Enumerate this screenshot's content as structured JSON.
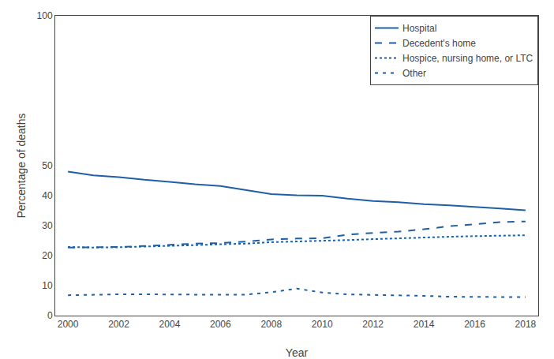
{
  "chart_data": {
    "type": "line",
    "x": [
      2000,
      2001,
      2002,
      2003,
      2004,
      2005,
      2006,
      2007,
      2008,
      2009,
      2010,
      2011,
      2012,
      2013,
      2014,
      2015,
      2016,
      2017,
      2018
    ],
    "series": [
      {
        "name": "Hospital",
        "color": "#1f5fa6",
        "line_style": "solid",
        "values": [
          48.0,
          46.8,
          46.2,
          45.3,
          44.6,
          43.8,
          43.2,
          41.8,
          40.5,
          40.1,
          40.0,
          39.0,
          38.2,
          37.8,
          37.2,
          36.8,
          36.3,
          35.7,
          35.1
        ]
      },
      {
        "name": "Decedent's home",
        "color": "#1f5fa6",
        "line_style": "dashed",
        "values": [
          22.7,
          22.8,
          22.9,
          23.2,
          23.6,
          24.0,
          24.2,
          24.7,
          25.4,
          25.7,
          25.8,
          27.0,
          27.6,
          28.0,
          28.8,
          29.8,
          30.5,
          31.2,
          31.4
        ]
      },
      {
        "name": "Hospice, nursing home, or LTC",
        "color": "#1f5fa6",
        "line_style": "dotted",
        "values": [
          22.9,
          22.7,
          22.8,
          23.0,
          23.2,
          23.5,
          23.8,
          24.0,
          24.5,
          24.7,
          25.0,
          25.2,
          25.5,
          25.8,
          26.0,
          26.3,
          26.5,
          26.7,
          26.8
        ]
      },
      {
        "name": "Other",
        "color": "#1f5fa6",
        "line_style": "shortdash",
        "values": [
          6.8,
          7.0,
          7.1,
          7.1,
          7.0,
          7.0,
          7.0,
          7.0,
          7.8,
          9.0,
          7.7,
          7.1,
          6.9,
          6.8,
          6.6,
          6.3,
          6.2,
          6.2,
          6.2
        ]
      }
    ],
    "xlabel": "Year",
    "ylabel": "Percentage of deaths",
    "xlim": [
      1999.5,
      2018.5
    ],
    "xticks": [
      2000,
      2002,
      2004,
      2006,
      2008,
      2010,
      2012,
      2014,
      2016,
      2018
    ],
    "ylim": [
      0,
      100
    ],
    "yticks": [
      0,
      10,
      20,
      30,
      40,
      50,
      100
    ],
    "grid": false,
    "legend": "upper right"
  }
}
